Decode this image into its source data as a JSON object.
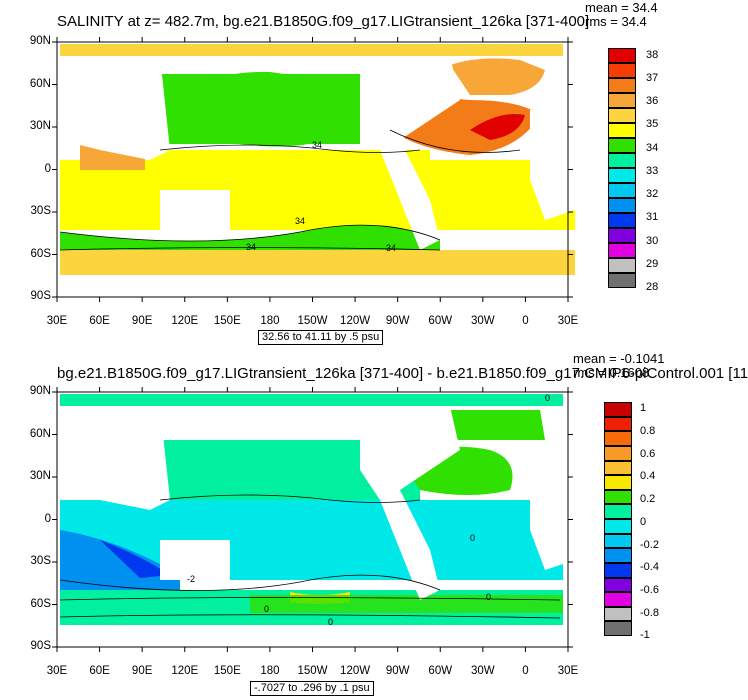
{
  "chart_data": [
    {
      "type": "heatmap",
      "title": "SALINITY at z= 482.7m, bg.e21.B1850G.f09_g17.LIGtransient_126ka [371-400]",
      "stats": {
        "mean": "mean = 34.4",
        "rms": "rms = 34.4"
      },
      "x_ticks": [
        "30E",
        "60E",
        "90E",
        "120E",
        "150E",
        "180",
        "150W",
        "120W",
        "90W",
        "60W",
        "30W",
        "0",
        "30E"
      ],
      "y_ticks": [
        "90N",
        "60N",
        "30N",
        "0",
        "30S",
        "60S",
        "90S"
      ],
      "contour_labels": [
        "34",
        "34",
        "34",
        "34"
      ],
      "colorbar": {
        "labels": [
          "38",
          "37",
          "36",
          "35",
          "34",
          "33",
          "32",
          "31",
          "30",
          "29",
          "28"
        ],
        "colors": [
          "#e00000",
          "#f73c06",
          "#f47c18",
          "#f7a737",
          "#fbd43e",
          "#ffff00",
          "#2fe000",
          "#00f0a0",
          "#00e8e8",
          "#00c8f0",
          "#0090f0",
          "#0038f0",
          "#8000e0",
          "#e000e0",
          "#c0c0c0",
          "#707070"
        ]
      },
      "info": "32.56 to 41.11 by .5 psu"
    },
    {
      "type": "heatmap",
      "title": "bg.e21.B1850G.f09_g17.LIGtransient_126ka [371-400] - b.e21.B1850.f09_g17.CMIP6-piControl.001 [11",
      "stats": {
        "mean": "mean = -0.1041",
        "rms": "rms = 0.1608"
      },
      "x_ticks": [
        "30E",
        "60E",
        "90E",
        "120E",
        "150E",
        "180",
        "150W",
        "120W",
        "90W",
        "60W",
        "30W",
        "0",
        "30E"
      ],
      "y_ticks": [
        "90N",
        "60N",
        "30N",
        "0",
        "30S",
        "60S",
        "90S"
      ],
      "contour_labels": [
        "0",
        "0",
        "-2",
        "0",
        "0",
        "0"
      ],
      "colorbar": {
        "labels": [
          "1",
          "0.8",
          "0.6",
          "0.4",
          "0.2",
          "0",
          "-0.2",
          "-0.4",
          "-0.6",
          "-0.8",
          "-1"
        ],
        "colors": [
          "#c80000",
          "#ee2000",
          "#f76a0a",
          "#f79a2a",
          "#fbc032",
          "#f8e800",
          "#2fe000",
          "#00f0a0",
          "#00e8e8",
          "#00c8f0",
          "#0090f0",
          "#0038f0",
          "#8000e0",
          "#e000e0",
          "#c0c0c0",
          "#707070"
        ]
      },
      "info": "-.7027 to .296 by .1 psu"
    }
  ]
}
